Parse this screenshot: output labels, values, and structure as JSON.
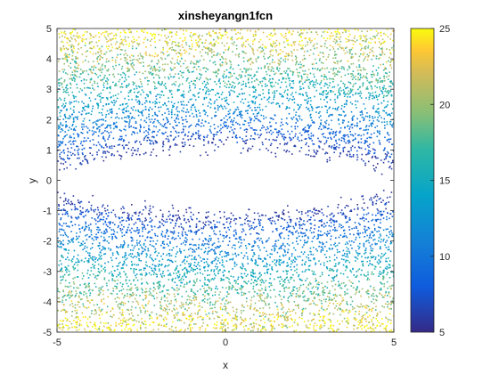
{
  "chart_data": {
    "type": "scatter",
    "title": "xinsheyangn1fcn",
    "xlabel": "x",
    "ylabel": "y",
    "xlim": [
      -5,
      5
    ],
    "ylim": [
      -5,
      5
    ],
    "xticks": [
      "-5",
      "0",
      "5"
    ],
    "yticks": [
      "5",
      "4",
      "3",
      "2",
      "1",
      "0",
      "-1",
      "-2",
      "-3",
      "-4",
      "-5"
    ],
    "colorbar": {
      "range": [
        5,
        25
      ],
      "ticks": [
        "25",
        "20",
        "15",
        "10",
        "5"
      ],
      "colormap": "parula"
    },
    "grid": false,
    "description_points": {
      "pattern": "dense random samples colored by function value; empty region around y=0 where value is below 5",
      "hole_half_height_center": 1.0,
      "hole_half_height_edges": 0.25
    }
  },
  "colors": {
    "axis": "#262626",
    "parula_dark": "#352a87",
    "parula_blue": "#0f5cdd",
    "parula_teal": "#1cb6c1",
    "parula_yellow": "#f9fb0e"
  }
}
